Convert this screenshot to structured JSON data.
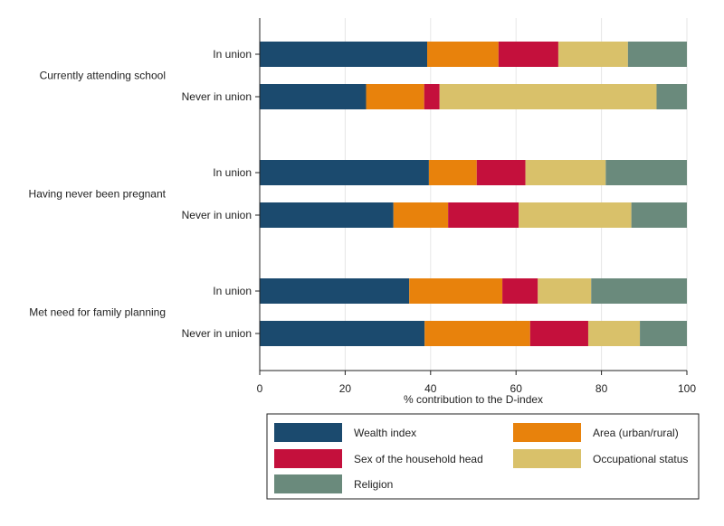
{
  "chart_data": {
    "type": "bar",
    "orientation": "horizontal",
    "stacked": true,
    "xlabel": "% contribution to the D-index",
    "xlim": [
      0,
      100
    ],
    "xticks": [
      0,
      20,
      40,
      60,
      80,
      100
    ],
    "legend_position": "bottom",
    "series_names": [
      "Wealth index",
      "Area (urban/rural)",
      "Sex of the household head",
      "Occupational status",
      "Religion"
    ],
    "colors": {
      "Wealth index": "#1b4a6e",
      "Area (urban/rural)": "#e8820c",
      "Sex of the household head": "#c4103c",
      "Occupational status": "#d9c16a",
      "Religion": "#6a8a7c"
    },
    "groups": [
      {
        "label": "Currently attending school",
        "bars": [
          {
            "label": "In union",
            "values": [
              39.2,
              16.7,
              14.0,
              16.3,
              13.8
            ]
          },
          {
            "label": "Never in union",
            "values": [
              24.9,
              13.6,
              3.6,
              50.8,
              7.1
            ]
          }
        ]
      },
      {
        "label": "Having never been pregnant",
        "bars": [
          {
            "label": "In union",
            "values": [
              39.6,
              11.2,
              11.4,
              18.8,
              19.0
            ]
          },
          {
            "label": "Never in union",
            "values": [
              31.3,
              12.8,
              16.5,
              26.4,
              13.0
            ]
          }
        ]
      },
      {
        "label": "Met need for family planning",
        "bars": [
          {
            "label": "In union",
            "values": [
              35.0,
              21.8,
              8.3,
              12.5,
              22.4
            ]
          },
          {
            "label": "Never in union",
            "values": [
              38.6,
              24.7,
              13.6,
              12.1,
              11.0
            ]
          }
        ]
      }
    ]
  }
}
